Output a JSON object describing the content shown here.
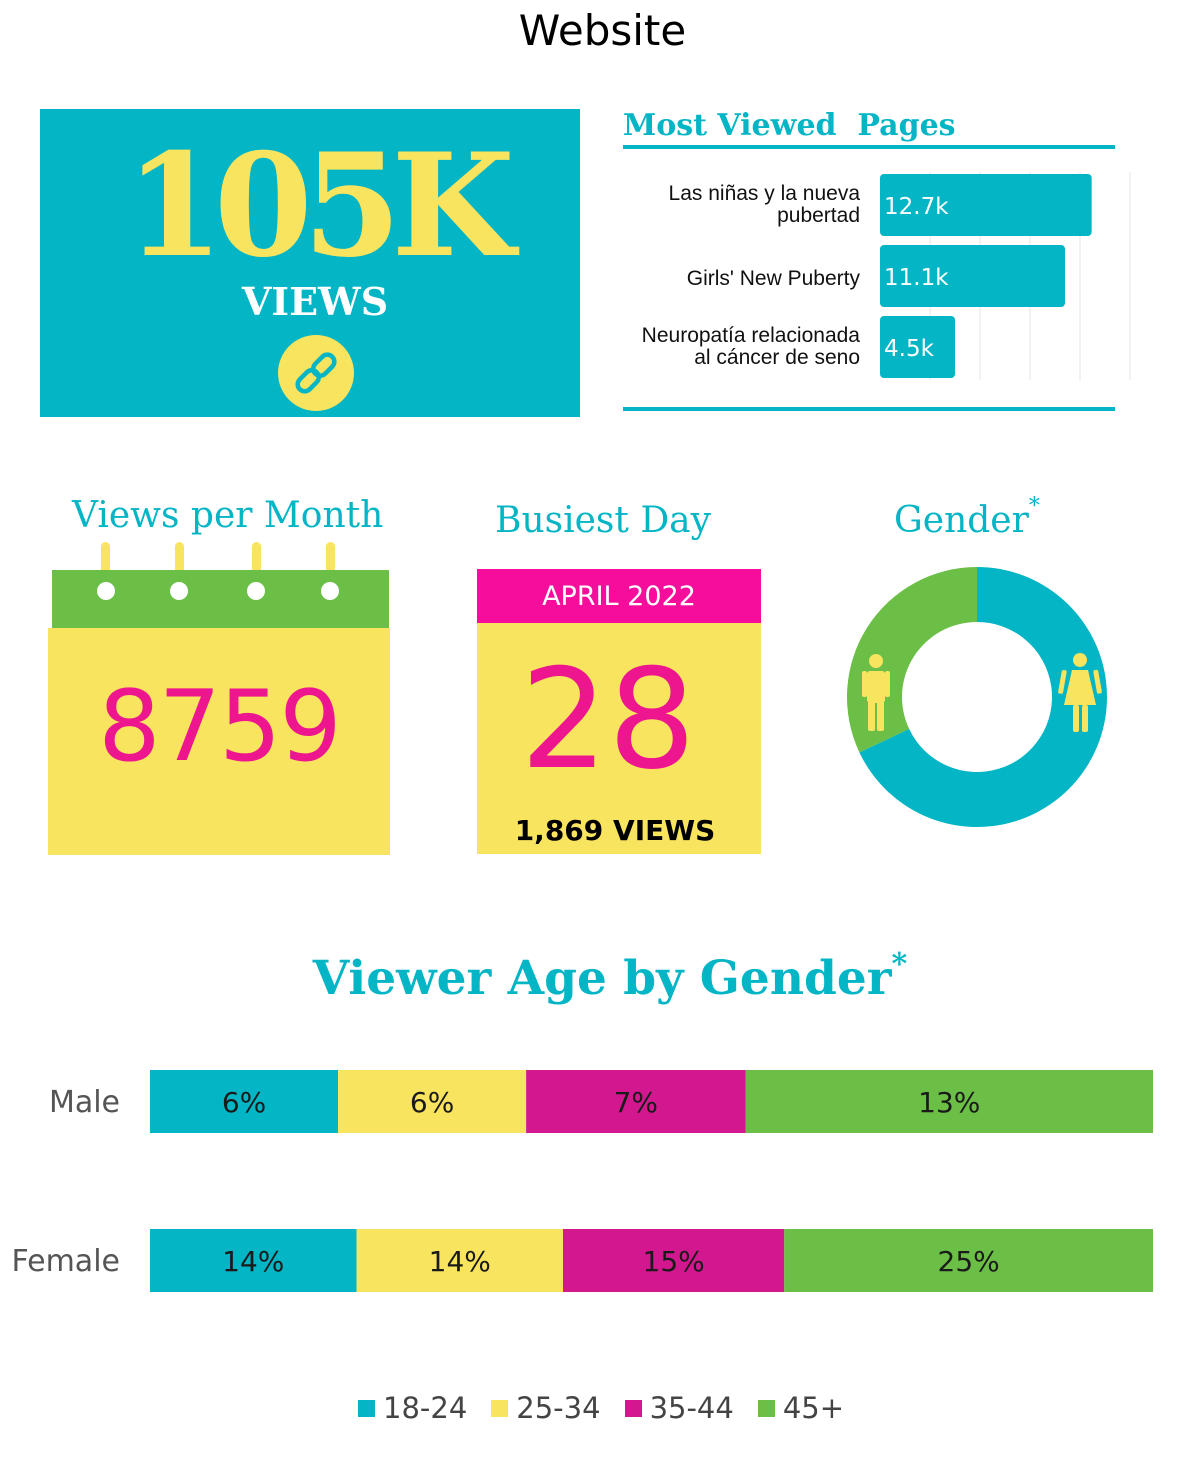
{
  "page": {
    "title": "Website"
  },
  "total_views": {
    "value": "105K",
    "label": "VIEWS",
    "icon": "link-icon"
  },
  "most_viewed": {
    "title": "Most Viewed  Pages",
    "pages": [
      {
        "name": "Las niñas y la nueva pubertad",
        "value": 12.7,
        "label": "12.7k"
      },
      {
        "name": "Girls' New Puberty",
        "value": 11.1,
        "label": "11.1k"
      },
      {
        "name": "Neuropatía relacionada al cáncer de seno",
        "value": 4.5,
        "label": "4.5k"
      }
    ]
  },
  "views_per_month": {
    "title": "Views per Month",
    "value": "8759"
  },
  "busiest_day": {
    "title": "Busiest Day",
    "month": "APRIL 2022",
    "day": "28",
    "views": "1,869 VIEWS"
  },
  "gender": {
    "title": "Gender",
    "marker": "*",
    "icons": [
      "male-icon",
      "female-icon"
    ],
    "shares": {
      "male": 32,
      "female": 68
    }
  },
  "age_by_gender": {
    "title": "Viewer Age by Gender",
    "marker": "*"
  },
  "colors": {
    "teal": "#03b5c5",
    "yellow": "#f9e45f",
    "magenta": "#d3178e",
    "pink": "#ed168f",
    "green": "#6bbf47"
  },
  "chart_data": [
    {
      "type": "bar",
      "orientation": "horizontal",
      "title": "Most Viewed  Pages",
      "categories": [
        "Las niñas y la nueva pubertad",
        "Girls' New Puberty",
        "Neuropatía relacionada al cáncer de seno"
      ],
      "values": [
        12.7,
        11.1,
        4.5
      ],
      "data_labels": [
        "12.7k",
        "11.1k",
        "4.5k"
      ],
      "xlim": [
        0,
        15
      ],
      "grid": true
    },
    {
      "type": "pie",
      "title": "Gender",
      "categories": [
        "Male",
        "Female"
      ],
      "values": [
        32,
        68
      ],
      "donut": true
    },
    {
      "type": "bar",
      "orientation": "horizontal",
      "stacked": true,
      "title": "Viewer Age by Gender",
      "categories": [
        "Male",
        "Female"
      ],
      "series": [
        {
          "name": "18-24",
          "values": [
            6,
            14
          ],
          "labels": [
            "6%",
            "14%"
          ],
          "color": "#03b5c5"
        },
        {
          "name": "25-34",
          "values": [
            6,
            14
          ],
          "labels": [
            "6%",
            "14%"
          ],
          "color": "#f9e45f"
        },
        {
          "name": "35-44",
          "values": [
            7,
            15
          ],
          "labels": [
            "7%",
            "15%"
          ],
          "color": "#d3178e"
        },
        {
          "name": "45+",
          "values": [
            13,
            25
          ],
          "labels": [
            "13%",
            "25%"
          ],
          "color": "#6bbf47"
        }
      ],
      "legend": "bottom",
      "grid": false
    }
  ]
}
